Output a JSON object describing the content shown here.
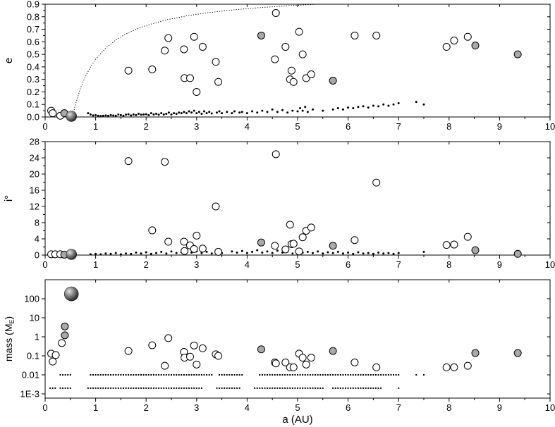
{
  "colors": {
    "open_marker": "#ffffff",
    "grey_marker": "#a9a9a9",
    "sphere_light": "#d8d8d8",
    "sphere_dark": "#303030",
    "dot": "#000000"
  },
  "chart_data": [
    {
      "type": "scatter",
      "ylabel": "e",
      "xlim": [
        0,
        10
      ],
      "ylim": [
        0,
        0.9
      ],
      "yticks": [
        "0.0",
        "0.1",
        "0.2",
        "0.3",
        "0.4",
        "0.5",
        "0.6",
        "0.7",
        "0.8",
        "0.9"
      ],
      "ytick_values": [
        0,
        0.1,
        0.2,
        0.3,
        0.4,
        0.5,
        0.6,
        0.7,
        0.8,
        0.9
      ],
      "xticks": [
        "0",
        "1",
        "2",
        "3",
        "4",
        "5",
        "6",
        "7",
        "8",
        "9",
        "10"
      ],
      "curve": {
        "style": "dotted",
        "x": [
          0.54,
          0.6,
          0.7,
          0.8,
          0.9,
          1.0,
          1.2,
          1.4,
          1.6,
          1.8,
          2.0,
          2.4,
          2.8,
          3.2,
          3.6,
          4.0,
          4.4,
          4.8,
          5.2,
          5.4
        ],
        "y": [
          0.0,
          0.1,
          0.229,
          0.325,
          0.4,
          0.46,
          0.55,
          0.614,
          0.663,
          0.7,
          0.73,
          0.775,
          0.807,
          0.831,
          0.85,
          0.865,
          0.877,
          0.888,
          0.896,
          0.9
        ]
      },
      "open": [
        [
          0.12,
          0.05
        ],
        [
          0.15,
          0.03
        ],
        [
          0.3,
          0.01
        ],
        [
          1.65,
          0.37
        ],
        [
          2.12,
          0.38
        ],
        [
          2.37,
          0.53
        ],
        [
          2.44,
          0.63
        ],
        [
          2.75,
          0.54
        ],
        [
          2.76,
          0.31
        ],
        [
          2.87,
          0.31
        ],
        [
          2.95,
          0.64
        ],
        [
          3.0,
          0.2
        ],
        [
          3.12,
          0.56
        ],
        [
          3.38,
          0.44
        ],
        [
          3.43,
          0.28
        ],
        [
          4.55,
          0.46
        ],
        [
          4.57,
          0.83
        ],
        [
          4.76,
          0.56
        ],
        [
          4.85,
          0.3
        ],
        [
          4.88,
          0.37
        ],
        [
          4.92,
          0.28
        ],
        [
          5.03,
          0.68
        ],
        [
          5.1,
          0.5
        ],
        [
          5.17,
          0.31
        ],
        [
          5.27,
          0.34
        ],
        [
          6.13,
          0.65
        ],
        [
          6.56,
          0.65
        ],
        [
          7.95,
          0.56
        ],
        [
          8.1,
          0.61
        ],
        [
          8.37,
          0.64
        ]
      ],
      "grey": [
        [
          0.38,
          0.03
        ],
        [
          4.28,
          0.65
        ],
        [
          5.7,
          0.29
        ],
        [
          8.52,
          0.57
        ],
        [
          9.36,
          0.5
        ]
      ],
      "spheres": [
        {
          "x": 0.52,
          "y": 0.005,
          "size": "medium"
        }
      ],
      "small_dots": [
        [
          0.85,
          0.03
        ],
        [
          0.9,
          0.02
        ],
        [
          0.95,
          0.012
        ],
        [
          1.0,
          0.015
        ],
        [
          1.05,
          0.01
        ],
        [
          1.1,
          0.008
        ],
        [
          1.15,
          0.01
        ],
        [
          1.2,
          0.012
        ],
        [
          1.25,
          0.009
        ],
        [
          1.3,
          0.015
        ],
        [
          1.35,
          0.012
        ],
        [
          1.4,
          0.01
        ],
        [
          1.45,
          0.02
        ],
        [
          1.5,
          0.015
        ],
        [
          1.55,
          0.01
        ],
        [
          1.6,
          0.018
        ],
        [
          1.65,
          0.022
        ],
        [
          1.7,
          0.012
        ],
        [
          1.75,
          0.02
        ],
        [
          1.8,
          0.015
        ],
        [
          1.85,
          0.025
        ],
        [
          1.9,
          0.018
        ],
        [
          1.95,
          0.02
        ],
        [
          2.0,
          0.022
        ],
        [
          2.05,
          0.015
        ],
        [
          2.1,
          0.03
        ],
        [
          2.15,
          0.02
        ],
        [
          2.2,
          0.025
        ],
        [
          2.25,
          0.018
        ],
        [
          2.3,
          0.03
        ],
        [
          2.35,
          0.02
        ],
        [
          2.4,
          0.025
        ],
        [
          2.45,
          0.035
        ],
        [
          2.5,
          0.02
        ],
        [
          2.55,
          0.03
        ],
        [
          2.6,
          0.025
        ],
        [
          2.65,
          0.035
        ],
        [
          2.7,
          0.03
        ],
        [
          2.75,
          0.04
        ],
        [
          2.8,
          0.03
        ],
        [
          2.85,
          0.045
        ],
        [
          2.9,
          0.035
        ],
        [
          2.95,
          0.05
        ],
        [
          3.0,
          0.03
        ],
        [
          3.05,
          0.04
        ],
        [
          3.1,
          0.025
        ],
        [
          3.15,
          0.045
        ],
        [
          3.2,
          0.03
        ],
        [
          3.25,
          0.04
        ],
        [
          3.3,
          0.028
        ],
        [
          3.4,
          0.035
        ],
        [
          3.45,
          0.045
        ],
        [
          3.5,
          0.03
        ],
        [
          3.6,
          0.04
        ],
        [
          3.7,
          0.03
        ],
        [
          3.75,
          0.045
        ],
        [
          3.85,
          0.035
        ],
        [
          3.9,
          0.04
        ],
        [
          4.0,
          0.03
        ],
        [
          4.1,
          0.045
        ],
        [
          4.2,
          0.035
        ],
        [
          4.3,
          0.05
        ],
        [
          4.4,
          0.04
        ],
        [
          4.5,
          0.06
        ],
        [
          4.6,
          0.04
        ],
        [
          4.7,
          0.055
        ],
        [
          4.8,
          0.035
        ],
        [
          4.9,
          0.05
        ],
        [
          5.0,
          0.045
        ],
        [
          5.05,
          0.07
        ],
        [
          5.1,
          0.05
        ],
        [
          5.15,
          0.08
        ],
        [
          5.2,
          0.04
        ],
        [
          5.3,
          0.06
        ],
        [
          5.5,
          0.05
        ],
        [
          5.7,
          0.06
        ],
        [
          5.8,
          0.07
        ],
        [
          5.9,
          0.06
        ],
        [
          6.0,
          0.075
        ],
        [
          6.1,
          0.07
        ],
        [
          6.2,
          0.08
        ],
        [
          6.3,
          0.085
        ],
        [
          6.4,
          0.075
        ],
        [
          6.5,
          0.09
        ],
        [
          6.6,
          0.085
        ],
        [
          6.7,
          0.1
        ],
        [
          6.8,
          0.09
        ],
        [
          6.9,
          0.1
        ],
        [
          7.0,
          0.11
        ],
        [
          7.35,
          0.12
        ],
        [
          7.5,
          0.1
        ]
      ]
    },
    {
      "type": "scatter",
      "ylabel": "i°",
      "xlim": [
        0,
        10
      ],
      "ylim": [
        0,
        28
      ],
      "yticks": [
        "0",
        "4",
        "8",
        "12",
        "16",
        "20",
        "24",
        "28"
      ],
      "ytick_values": [
        0,
        4,
        8,
        12,
        16,
        20,
        24,
        28
      ],
      "xticks": [
        "0",
        "1",
        "2",
        "3",
        "4",
        "5",
        "6",
        "7",
        "8",
        "9",
        "10"
      ],
      "open": [
        [
          0.12,
          0.2
        ],
        [
          0.2,
          0.2
        ],
        [
          0.3,
          0.2
        ],
        [
          1.65,
          23.2
        ],
        [
          2.12,
          6.1
        ],
        [
          2.37,
          23.0
        ],
        [
          2.44,
          3.3
        ],
        [
          2.75,
          3.3
        ],
        [
          2.76,
          1.0
        ],
        [
          2.87,
          2.4
        ],
        [
          2.95,
          1.5
        ],
        [
          3.0,
          4.8
        ],
        [
          3.12,
          1.6
        ],
        [
          3.38,
          12.0
        ],
        [
          3.43,
          0.8
        ],
        [
          4.55,
          2.3
        ],
        [
          4.57,
          24.9
        ],
        [
          4.76,
          1.4
        ],
        [
          4.85,
          7.5
        ],
        [
          4.88,
          2.7
        ],
        [
          4.92,
          2.8
        ],
        [
          5.03,
          0.9
        ],
        [
          5.1,
          4.4
        ],
        [
          5.17,
          6.0
        ],
        [
          5.27,
          6.8
        ],
        [
          6.13,
          3.7
        ],
        [
          6.56,
          17.9
        ],
        [
          7.95,
          2.5
        ],
        [
          8.1,
          2.6
        ],
        [
          8.37,
          4.5
        ]
      ],
      "grey": [
        [
          0.38,
          0.1
        ],
        [
          4.28,
          3.1
        ],
        [
          5.7,
          2.3
        ],
        [
          8.52,
          1.2
        ],
        [
          9.36,
          0.3
        ]
      ],
      "spheres": [
        {
          "x": 0.52,
          "y": 0.1,
          "size": "medium"
        }
      ],
      "small_dots": [
        [
          0.9,
          0.2
        ],
        [
          1.0,
          0.3
        ],
        [
          1.1,
          0.2
        ],
        [
          1.2,
          0.4
        ],
        [
          1.3,
          0.3
        ],
        [
          1.4,
          0.5
        ],
        [
          1.5,
          0.2
        ],
        [
          1.6,
          0.4
        ],
        [
          1.7,
          0.3
        ],
        [
          1.8,
          0.6
        ],
        [
          1.9,
          0.4
        ],
        [
          2.0,
          0.7
        ],
        [
          2.1,
          0.3
        ],
        [
          2.2,
          0.5
        ],
        [
          2.3,
          0.8
        ],
        [
          2.4,
          0.4
        ],
        [
          2.5,
          0.9
        ],
        [
          2.6,
          0.5
        ],
        [
          2.7,
          0.7
        ],
        [
          2.8,
          1.1
        ],
        [
          2.9,
          0.6
        ],
        [
          3.0,
          0.9
        ],
        [
          3.1,
          0.5
        ],
        [
          3.2,
          0.8
        ],
        [
          3.3,
          0.4
        ],
        [
          3.4,
          0.7
        ],
        [
          3.5,
          0.5
        ],
        [
          3.7,
          0.9
        ],
        [
          3.8,
          0.6
        ],
        [
          3.9,
          1.0
        ],
        [
          4.0,
          0.5
        ],
        [
          4.1,
          0.8
        ],
        [
          4.2,
          1.2
        ],
        [
          4.3,
          0.6
        ],
        [
          4.4,
          0.9
        ],
        [
          4.5,
          0.5
        ],
        [
          4.6,
          1.1
        ],
        [
          4.7,
          0.6
        ],
        [
          4.8,
          0.9
        ],
        [
          4.9,
          0.4
        ],
        [
          5.0,
          1.0
        ],
        [
          5.1,
          0.6
        ],
        [
          5.2,
          0.8
        ],
        [
          5.3,
          0.5
        ],
        [
          5.4,
          0.9
        ],
        [
          5.5,
          0.4
        ],
        [
          5.6,
          0.7
        ],
        [
          5.7,
          0.5
        ],
        [
          5.8,
          0.8
        ],
        [
          5.9,
          0.4
        ],
        [
          6.0,
          0.6
        ],
        [
          6.1,
          0.3
        ],
        [
          6.2,
          0.7
        ],
        [
          6.3,
          0.4
        ],
        [
          6.4,
          0.5
        ],
        [
          6.5,
          0.3
        ],
        [
          6.6,
          0.6
        ],
        [
          6.7,
          0.4
        ],
        [
          6.8,
          0.5
        ],
        [
          6.9,
          0.3
        ],
        [
          7.0,
          0.5
        ],
        [
          7.5,
          0.8
        ]
      ]
    },
    {
      "type": "scatter",
      "ylabel": "mass (ME)",
      "ylabel_main": "mass (M",
      "ylabel_sub": "E",
      "ylabel_close": ")",
      "xlabel": "a (AU)",
      "xlim": [
        0,
        10
      ],
      "yscale": "log",
      "ylim": [
        0.0006,
        1000
      ],
      "yticks": [
        "1E-3",
        "0.01",
        "0.1",
        "1",
        "10",
        "100"
      ],
      "ytick_values": [
        0.001,
        0.01,
        0.1,
        1,
        10,
        100
      ],
      "xticks": [
        "0",
        "1",
        "2",
        "3",
        "4",
        "5",
        "6",
        "7",
        "8",
        "9",
        "10"
      ],
      "open": [
        [
          0.12,
          0.13
        ],
        [
          0.15,
          0.05
        ],
        [
          0.21,
          0.11
        ],
        [
          0.33,
          0.47
        ],
        [
          1.65,
          0.18
        ],
        [
          2.12,
          0.36
        ],
        [
          2.37,
          0.03
        ],
        [
          2.44,
          0.85
        ],
        [
          2.75,
          0.16
        ],
        [
          2.76,
          0.08
        ],
        [
          2.87,
          0.09
        ],
        [
          2.95,
          0.35
        ],
        [
          3.0,
          0.035
        ],
        [
          3.12,
          0.25
        ],
        [
          3.38,
          0.12
        ],
        [
          3.43,
          0.1
        ],
        [
          4.55,
          0.045
        ],
        [
          4.57,
          0.04
        ],
        [
          4.76,
          0.045
        ],
        [
          4.85,
          0.025
        ],
        [
          4.92,
          0.025
        ],
        [
          5.03,
          0.13
        ],
        [
          5.1,
          0.08
        ],
        [
          5.17,
          0.035
        ],
        [
          5.27,
          0.08
        ],
        [
          6.13,
          0.045
        ],
        [
          6.56,
          0.025
        ],
        [
          7.95,
          0.025
        ],
        [
          8.1,
          0.025
        ],
        [
          8.37,
          0.03
        ]
      ],
      "grey": [
        [
          0.39,
          3.5
        ],
        [
          0.39,
          1.2
        ],
        [
          4.28,
          0.22
        ],
        [
          5.7,
          0.18
        ],
        [
          8.52,
          0.14
        ],
        [
          9.36,
          0.14
        ]
      ],
      "spheres": [
        {
          "x": 0.52,
          "y": 180,
          "size": "large"
        }
      ],
      "dot_bands": [
        {
          "y": 0.01,
          "segments": [
            [
              0.3,
              0.5
            ],
            [
              0.9,
              3.3
            ],
            [
              3.45,
              3.9
            ],
            [
              4.25,
              7.0
            ]
          ],
          "extra": [
            7.35,
            7.5
          ]
        },
        {
          "y": 0.002,
          "segments": [
            [
              0.1,
              0.2
            ],
            [
              0.3,
              0.5
            ],
            [
              0.85,
              3.1
            ],
            [
              3.4,
              3.85
            ],
            [
              4.15,
              5.5
            ],
            [
              5.7,
              6.65
            ]
          ],
          "extra": [
            7.0
          ]
        }
      ]
    }
  ]
}
